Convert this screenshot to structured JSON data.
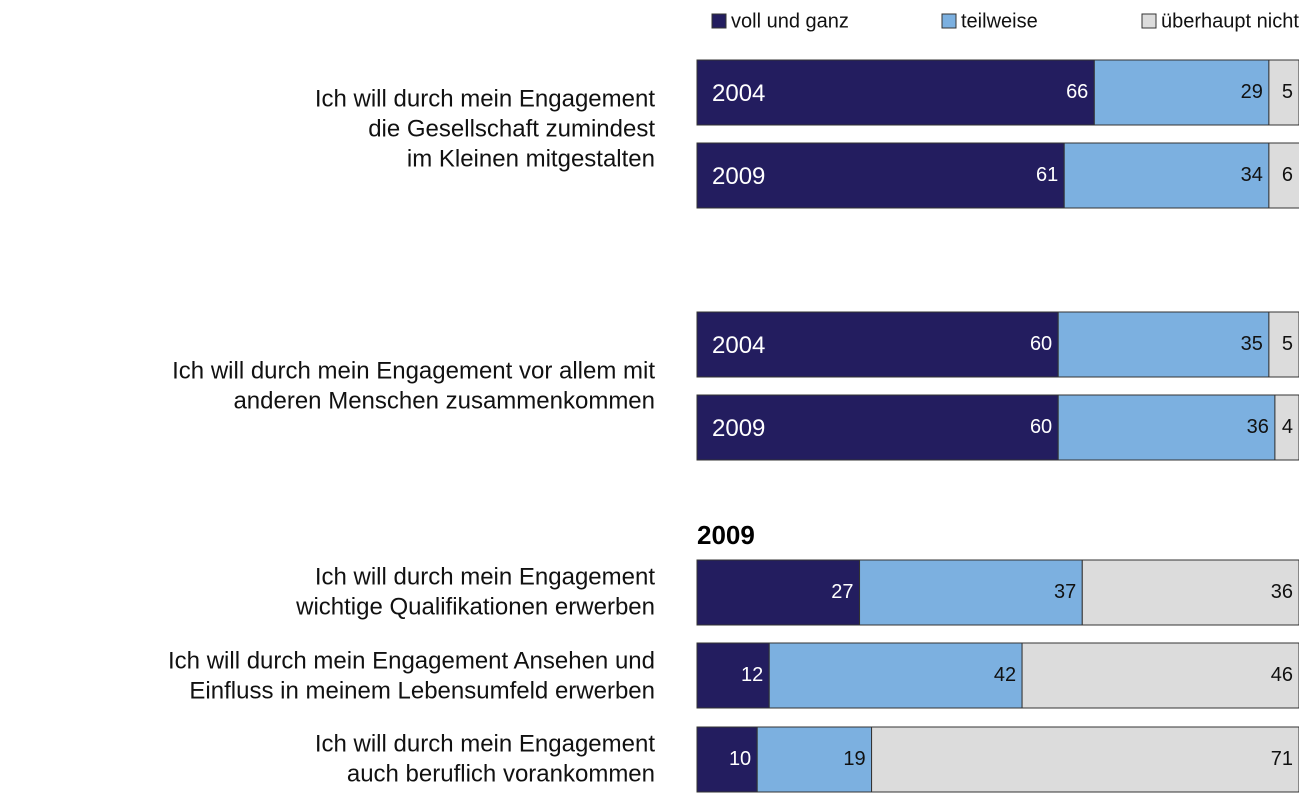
{
  "chart_data": {
    "type": "bar",
    "orientation": "horizontal",
    "stacked": true,
    "subtitle": "2009",
    "xlim": [
      0,
      100
    ],
    "categories": [
      "2004",
      "2009",
      "2004",
      "2009",
      null,
      null,
      null
    ],
    "row_labels": [
      [
        "Ich will durch mein Engagement",
        "die Gesellschaft zumindest",
        "im Kleinen mitgestalten"
      ],
      [
        "Ich will durch mein Engagement vor allem mit",
        "anderen Menschen zusammenkommen"
      ],
      [
        "Ich will durch mein Engagement",
        "wichtige Qualifikationen erwerben"
      ],
      [
        "Ich will durch mein Engagement Ansehen und",
        "Einfluss in meinem Lebensumfeld erwerben"
      ],
      [
        "Ich will durch mein Engagement",
        "auch beruflich vorankommen"
      ]
    ],
    "series": [
      {
        "name": "voll und ganz",
        "color": "#231d5f",
        "values": [
          66,
          61,
          60,
          60,
          27,
          12,
          10
        ]
      },
      {
        "name": "teilweise",
        "color": "#7cb0e0",
        "values": [
          29,
          34,
          35,
          36,
          37,
          42,
          19
        ]
      },
      {
        "name": "überhaupt nicht",
        "color": "#dcdcdc",
        "values": [
          5,
          6,
          5,
          4,
          36,
          46,
          71
        ]
      }
    ]
  }
}
